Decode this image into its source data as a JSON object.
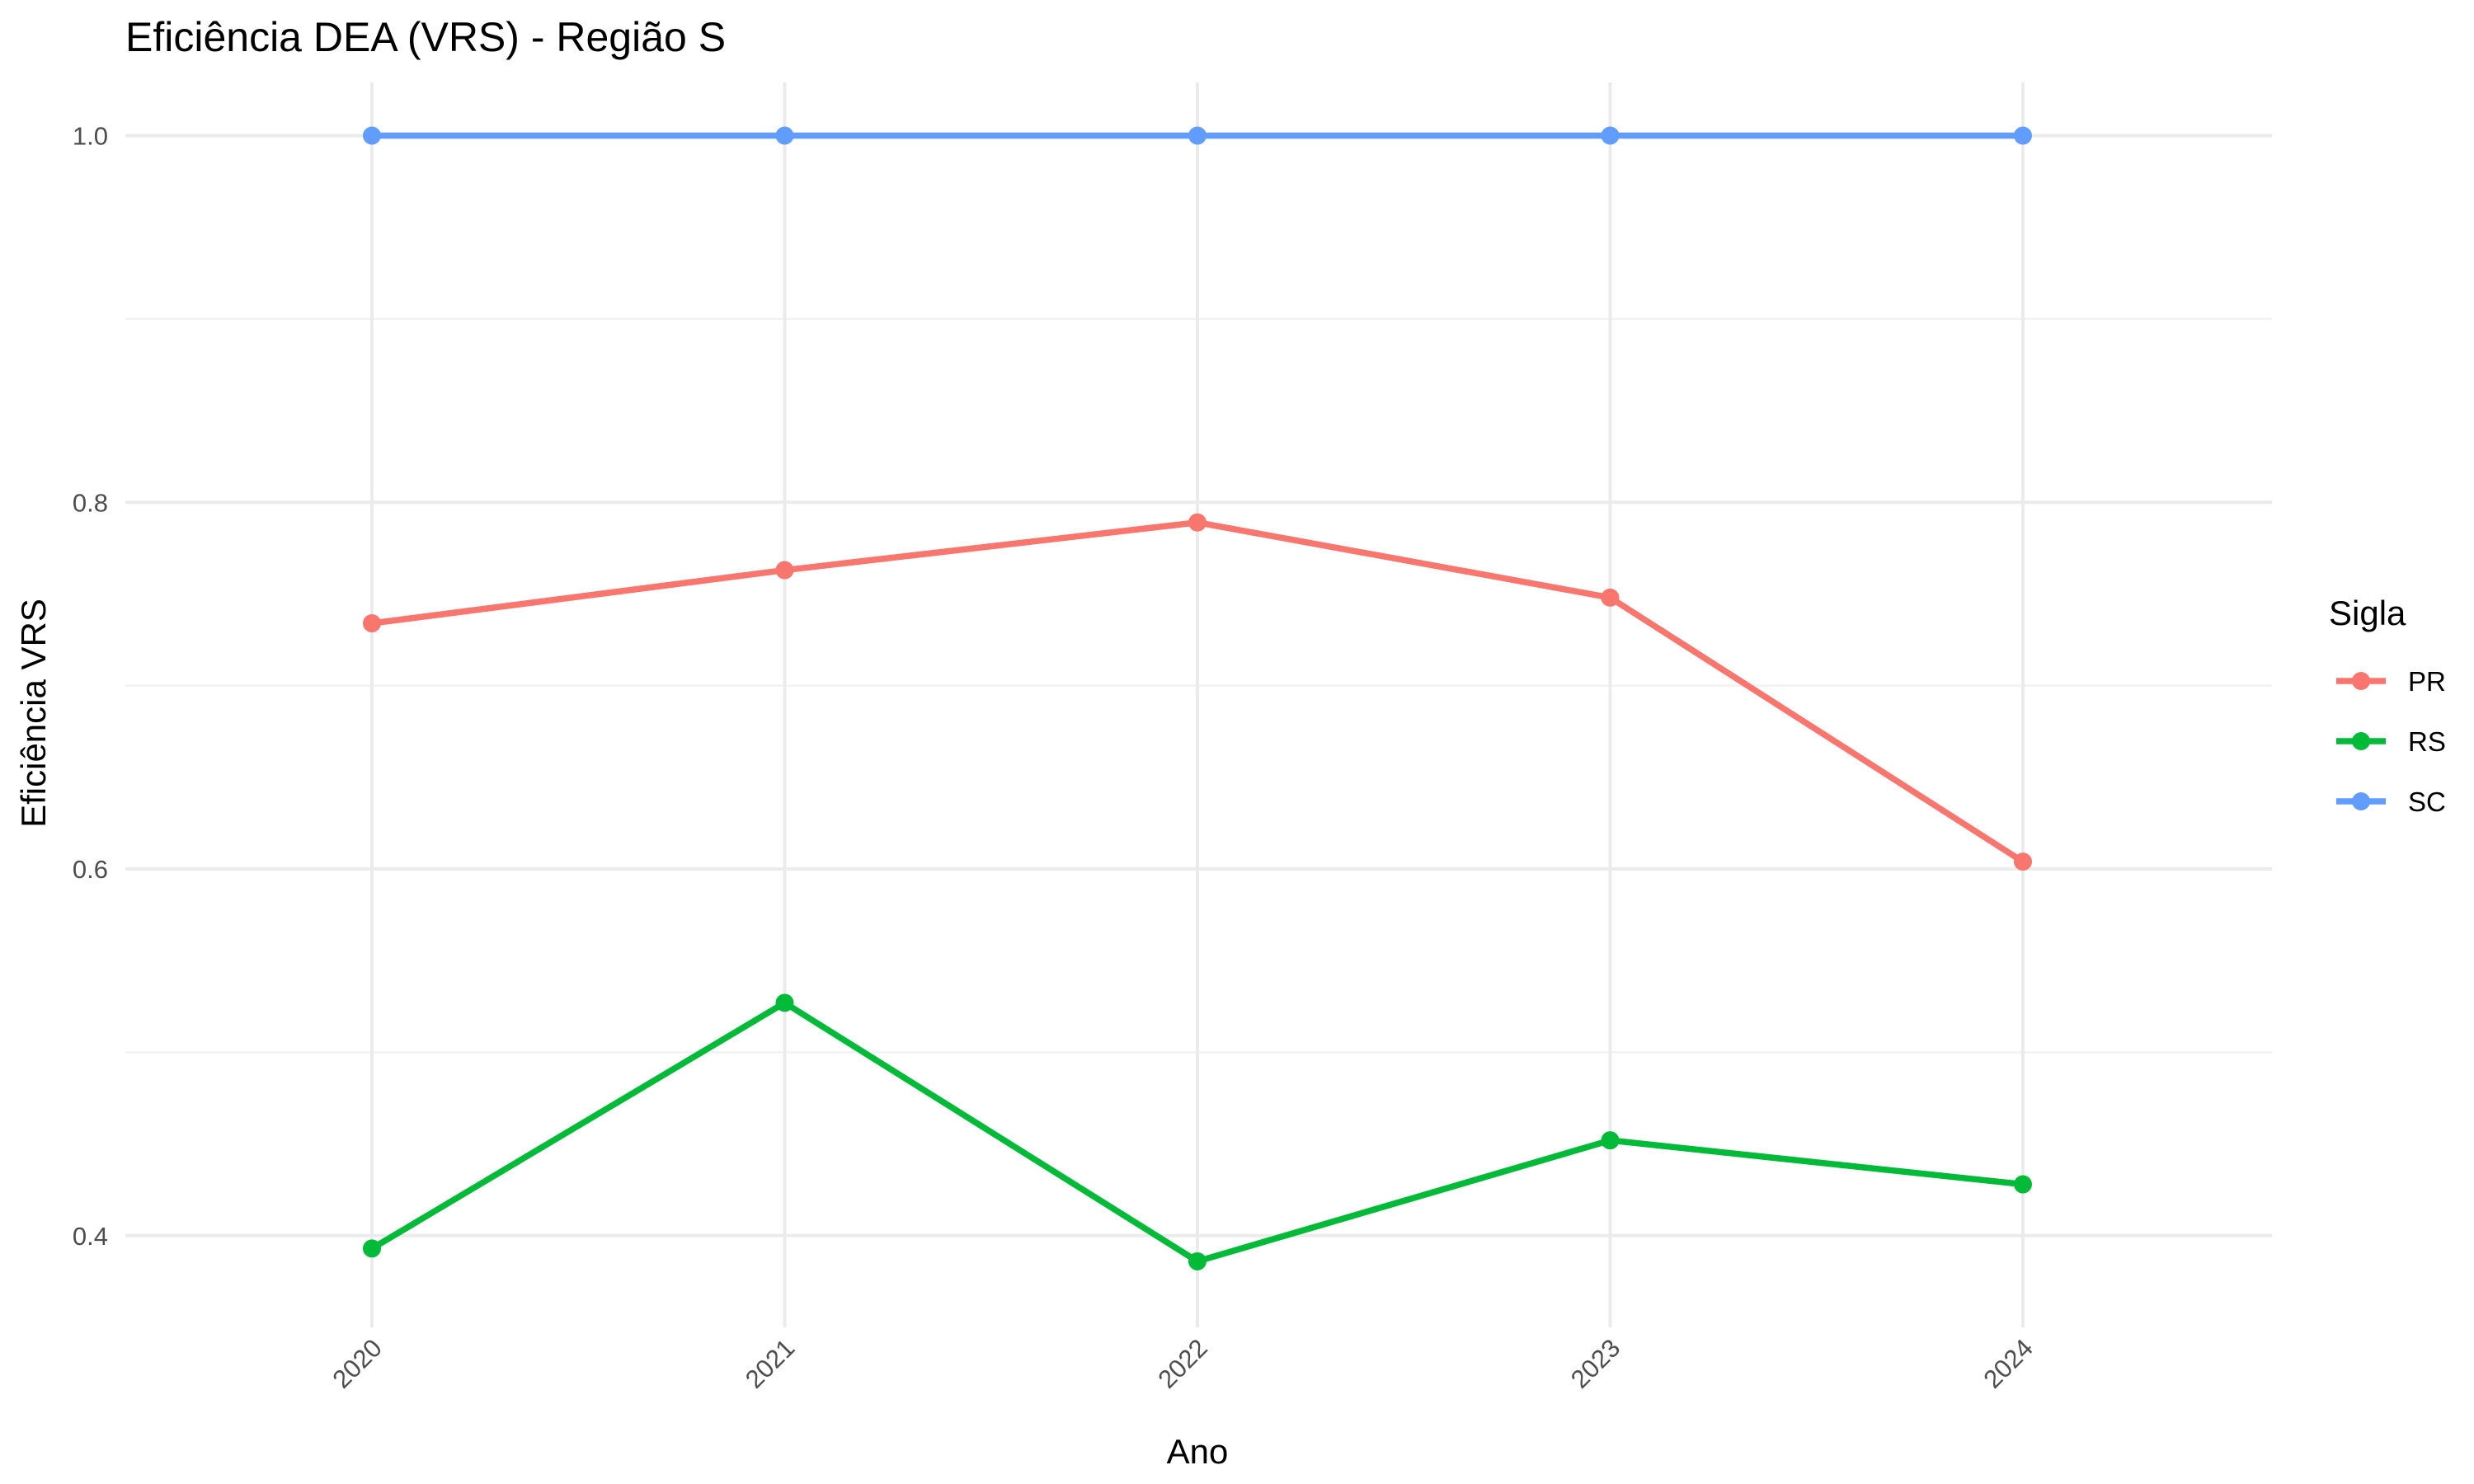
{
  "chart_data": {
    "type": "line",
    "title": "Eficiência DEA (VRS) - Região S",
    "xlabel": "Ano",
    "ylabel": "Eficiência VRS",
    "x": [
      "2020",
      "2021",
      "2022",
      "2023",
      "2024"
    ],
    "ylim": [
      0.35,
      1.02
    ],
    "y_ticks": [
      "0.4",
      "0.6",
      "0.8",
      "1.0"
    ],
    "grid": true,
    "legend": {
      "title": "Sigla",
      "placement": "right"
    },
    "series": [
      {
        "name": "PR",
        "color": "#F8766D",
        "values": [
          0.734,
          0.763,
          0.789,
          0.748,
          0.604
        ]
      },
      {
        "name": "RS",
        "color": "#00BA38",
        "values": [
          0.393,
          0.527,
          0.386,
          0.452,
          0.428
        ]
      },
      {
        "name": "SC",
        "color": "#619CFF",
        "values": [
          1.0,
          1.0,
          1.0,
          1.0,
          1.0
        ]
      }
    ]
  }
}
